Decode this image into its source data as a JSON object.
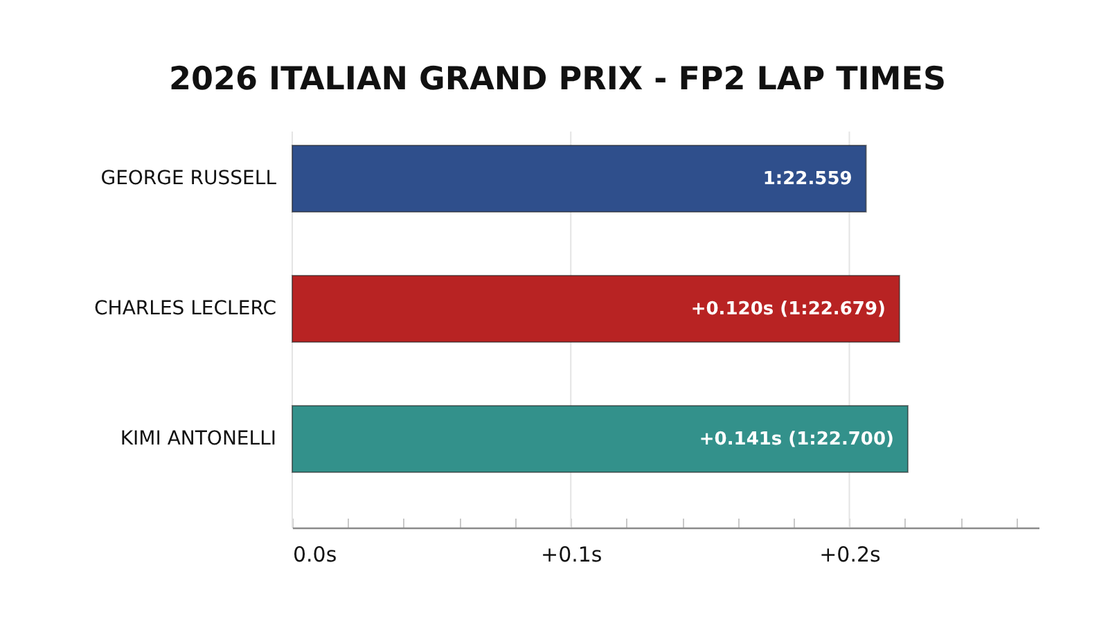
{
  "chart_data": {
    "type": "bar",
    "orientation": "horizontal",
    "title": "2026 ITALIAN GRAND PRIX - FP2 LAP TIMES",
    "categories": [
      "GEORGE RUSSELL",
      "CHARLES LECLERC",
      "KIMI ANTONELLI"
    ],
    "values": [
      0.206,
      0.218,
      0.221
    ],
    "colors": [
      "#2f4f8c",
      "#b82323",
      "#33918b"
    ],
    "annotations": [
      {
        "text": "1:22.559",
        "x": 0.206,
        "y": "GEORGE RUSSELL"
      },
      {
        "text": "+0.120s (1:22.679)",
        "x": 0.218,
        "y": "CHARLES LECLERC"
      },
      {
        "text": "+0.141s (1:22.700)",
        "x": 0.221,
        "y": "KIMI ANTONELLI"
      }
    ],
    "xlim": [
      0,
      0.268
    ],
    "xticks": [
      {
        "value": 0,
        "label": "0.0s"
      },
      {
        "value": 0.02,
        "label": null
      },
      {
        "value": 0.04,
        "label": null
      },
      {
        "value": 0.06,
        "label": null
      },
      {
        "value": 0.08,
        "label": null
      },
      {
        "value": 0.1,
        "label": "+0.1s"
      },
      {
        "value": 0.12,
        "label": null
      },
      {
        "value": 0.14,
        "label": null
      },
      {
        "value": 0.16,
        "label": null
      },
      {
        "value": 0.18,
        "label": null
      },
      {
        "value": 0.2,
        "label": "+0.2s"
      },
      {
        "value": 0.22,
        "label": null
      },
      {
        "value": 0.24,
        "label": null
      },
      {
        "value": 0.26,
        "label": null
      }
    ],
    "grid": "x"
  }
}
